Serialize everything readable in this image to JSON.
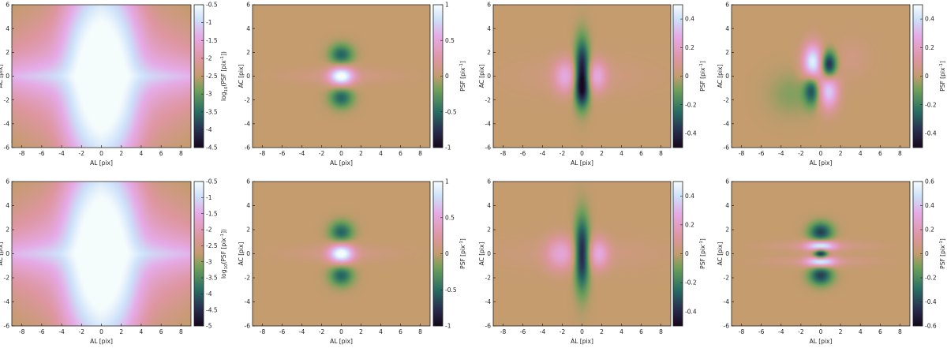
{
  "chart_data": [
    {
      "type": "heatmap",
      "panel": "row1-col1",
      "mode": "log",
      "xlabel": "AL [pix]",
      "ylabel": "AC [pix]",
      "xlim": [
        -9,
        9
      ],
      "ylim": [
        -6,
        6
      ],
      "xticks": [
        "-8",
        "-6",
        "-4",
        "-2",
        "0",
        "2",
        "4",
        "6",
        "8"
      ],
      "yticks": [
        "-6",
        "-4",
        "-2",
        "0",
        "2",
        "4",
        "6"
      ],
      "colorbar": {
        "label_base": "log",
        "label_sub": "10",
        "label_rest": "(PSF [pix",
        "label_sup": "-1",
        "label_end": "])",
        "range": [
          -4.5,
          -0.5
        ],
        "ticks": [
          "-4.5",
          "-4",
          "-3.5",
          "-3",
          "-2.5",
          "-2",
          "-1.5",
          "-1",
          "-0.5"
        ]
      }
    },
    {
      "type": "heatmap",
      "panel": "row1-col2",
      "mode": "bump0",
      "xlabel": "AL [pix]",
      "ylabel": "AC [pix]",
      "xlim": [
        -9,
        9
      ],
      "ylim": [
        -6,
        6
      ],
      "xticks": [
        "-8",
        "-6",
        "-4",
        "-2",
        "0",
        "2",
        "4",
        "6",
        "8"
      ],
      "yticks": [
        "-6",
        "-4",
        "-2",
        "0",
        "2",
        "4",
        "6"
      ],
      "colorbar": {
        "label_base": "PSF [pix",
        "label_sup": "-1",
        "label_end": "]",
        "range": [
          -1,
          1
        ],
        "ticks": [
          "-1",
          "-0.5",
          "0",
          "0.5",
          "1"
        ]
      }
    },
    {
      "type": "heatmap",
      "panel": "row1-col3",
      "mode": "lobesX",
      "xlabel": "AL [pix]",
      "ylabel": "AC [pix]",
      "xlim": [
        -9,
        9
      ],
      "ylim": [
        -6,
        6
      ],
      "xticks": [
        "-8",
        "-6",
        "-4",
        "-2",
        "0",
        "2",
        "4",
        "6",
        "8"
      ],
      "yticks": [
        "-6",
        "-4",
        "-2",
        "0",
        "2",
        "4",
        "6"
      ],
      "colorbar": {
        "label_base": "PSF [pix",
        "label_sup": "-1",
        "label_end": "]",
        "range": [
          -0.5,
          0.5
        ],
        "ticks": [
          "-0.4",
          "-0.2",
          "0",
          "0.2",
          "0.4"
        ]
      }
    },
    {
      "type": "heatmap",
      "panel": "row1-col4",
      "mode": "quad",
      "xlabel": "AL [pix]",
      "ylabel": "AC [pix]",
      "xlim": [
        -9,
        9
      ],
      "ylim": [
        -6,
        6
      ],
      "xticks": [
        "-8",
        "-6",
        "-4",
        "-2",
        "0",
        "2",
        "4",
        "6",
        "8"
      ],
      "yticks": [
        "-6",
        "-4",
        "-2",
        "0",
        "2",
        "4",
        "6"
      ],
      "colorbar": {
        "label_base": "PSF [pix",
        "label_sup": "-1",
        "label_end": "]",
        "range": [
          -0.5,
          0.5
        ],
        "ticks": [
          "-0.4",
          "-0.2",
          "0",
          "0.2",
          "0.4"
        ]
      }
    },
    {
      "type": "heatmap",
      "panel": "row2-col1",
      "mode": "log",
      "xlabel": "AL [pix]",
      "ylabel": "AC [pix]",
      "xlim": [
        -9,
        9
      ],
      "ylim": [
        -6,
        6
      ],
      "xticks": [
        "-8",
        "-6",
        "-4",
        "-2",
        "0",
        "2",
        "4",
        "6",
        "8"
      ],
      "yticks": [
        "-6",
        "-4",
        "-2",
        "0",
        "2",
        "4",
        "6"
      ],
      "colorbar": {
        "label_base": "log",
        "label_sub": "10",
        "label_rest": "(PSF [pix",
        "label_sup": "-1",
        "label_end": "])",
        "range": [
          -5,
          -0.5
        ],
        "ticks": [
          "-5",
          "-4.5",
          "-4",
          "-3.5",
          "-3",
          "-2.5",
          "-2",
          "-1.5",
          "-1",
          "-0.5"
        ]
      }
    },
    {
      "type": "heatmap",
      "panel": "row2-col2",
      "mode": "bump0",
      "xlabel": "AL [pix]",
      "ylabel": "AC [pix]",
      "xlim": [
        -9,
        9
      ],
      "ylim": [
        -6,
        6
      ],
      "xticks": [
        "-8",
        "-6",
        "-4",
        "-2",
        "0",
        "2",
        "4",
        "6",
        "8"
      ],
      "yticks": [
        "-6",
        "-4",
        "-2",
        "0",
        "2",
        "4",
        "6"
      ],
      "colorbar": {
        "label_base": "PSF [pix",
        "label_sup": "-1",
        "label_end": "]",
        "range": [
          -1,
          1
        ],
        "ticks": [
          "-1",
          "-0.5",
          "0",
          "0.5",
          "1"
        ]
      }
    },
    {
      "type": "heatmap",
      "panel": "row2-col3",
      "mode": "lobesX2",
      "xlabel": "AL [pix]",
      "ylabel": "AC [pix]",
      "xlim": [
        -9,
        9
      ],
      "ylim": [
        -6,
        6
      ],
      "xticks": [
        "-8",
        "-6",
        "-4",
        "-2",
        "0",
        "2",
        "4",
        "6",
        "8"
      ],
      "yticks": [
        "-6",
        "-4",
        "-2",
        "0",
        "2",
        "4",
        "6"
      ],
      "colorbar": {
        "label_base": "PSF [pix",
        "label_sup": "-1",
        "label_end": "]",
        "range": [
          -0.5,
          0.5
        ],
        "ticks": [
          "-0.4",
          "-0.2",
          "0",
          "0.2",
          "0.4"
        ]
      }
    },
    {
      "type": "heatmap",
      "panel": "row2-col4",
      "mode": "stripesY",
      "xlabel": "AL [pix]",
      "ylabel": "AC [pix]",
      "xlim": [
        -9,
        9
      ],
      "ylim": [
        -6,
        6
      ],
      "xticks": [
        "-8",
        "-6",
        "-4",
        "-2",
        "0",
        "2",
        "4",
        "6",
        "8"
      ],
      "yticks": [
        "-6",
        "-4",
        "-2",
        "0",
        "2",
        "4",
        "6"
      ],
      "colorbar": {
        "label_base": "PSF [pix",
        "label_sup": "-1",
        "label_end": "]",
        "range": [
          -0.6,
          0.6
        ],
        "ticks": [
          "-0.6",
          "-0.4",
          "-0.2",
          "0",
          "0.2",
          "0.4",
          "0.6"
        ]
      }
    }
  ]
}
